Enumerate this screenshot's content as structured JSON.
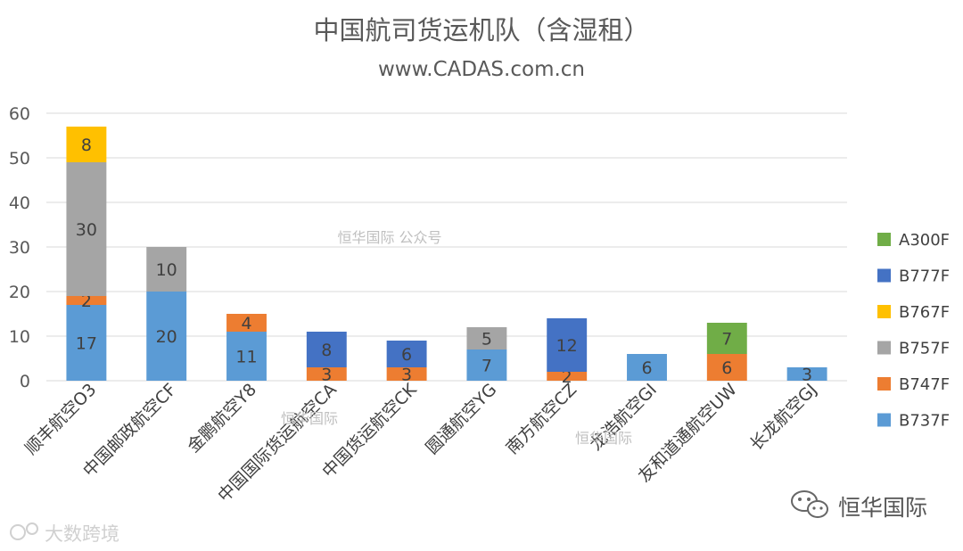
{
  "chart_data": {
    "type": "bar",
    "stacked": true,
    "title": "中国航司货运机队（含湿租）",
    "subtitle": "www.CADAS.com.cn",
    "categories": [
      "顺丰航空O3",
      "中国邮政航空CF",
      "金鹏航空Y8",
      "中国国际货运航空CA",
      "中国货运航空CK",
      "圆通航空YG",
      "南方航空CZ",
      "龙浩航空GI",
      "友和道通航空UW",
      "长龙航空GJ"
    ],
    "series": [
      {
        "name": "B737F",
        "color": "#5b9bd5",
        "values": [
          17,
          20,
          11,
          0,
          0,
          7,
          0,
          6,
          0,
          3
        ]
      },
      {
        "name": "B747F",
        "color": "#ed7d31",
        "values": [
          2,
          0,
          4,
          3,
          3,
          0,
          2,
          0,
          6,
          0
        ]
      },
      {
        "name": "B757F",
        "color": "#a5a5a5",
        "values": [
          30,
          10,
          0,
          0,
          0,
          5,
          0,
          0,
          0,
          0
        ]
      },
      {
        "name": "B767F",
        "color": "#ffc000",
        "values": [
          8,
          0,
          0,
          0,
          0,
          0,
          0,
          0,
          0,
          0
        ]
      },
      {
        "name": "B777F",
        "color": "#4472c4",
        "values": [
          0,
          0,
          0,
          8,
          6,
          0,
          12,
          0,
          0,
          0
        ]
      },
      {
        "name": "A300F",
        "color": "#70ad47",
        "values": [
          0,
          0,
          0,
          0,
          0,
          0,
          0,
          0,
          7,
          0
        ]
      }
    ],
    "ylim": [
      0,
      60
    ],
    "yticks": [
      0,
      10,
      20,
      30,
      40,
      50,
      60
    ],
    "grid": true,
    "legend_position": "right"
  },
  "watermarks": {
    "center": "恒华国际 公众号",
    "mid_left": "恒华国际",
    "mid_right": "恒华国际",
    "corner_left": "大数跨境",
    "brand": "恒华国际"
  }
}
